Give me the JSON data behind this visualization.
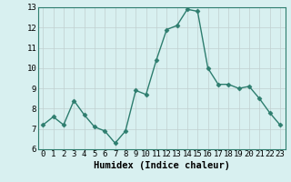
{
  "x": [
    0,
    1,
    2,
    3,
    4,
    5,
    6,
    7,
    8,
    9,
    10,
    11,
    12,
    13,
    14,
    15,
    16,
    17,
    18,
    19,
    20,
    21,
    22,
    23
  ],
  "y": [
    7.2,
    7.6,
    7.2,
    8.4,
    7.7,
    7.1,
    6.9,
    6.3,
    6.9,
    8.9,
    8.7,
    10.4,
    11.9,
    12.1,
    12.9,
    12.8,
    10.0,
    9.2,
    9.2,
    9.0,
    9.1,
    8.5,
    7.8,
    7.2
  ],
  "line_color": "#2d7d6e",
  "marker": "D",
  "marker_size": 2.5,
  "bg_color": "#d8f0f0",
  "grid_color": "#c0d0d0",
  "xlabel": "Humidex (Indice chaleur)",
  "ylim": [
    6,
    13
  ],
  "xlim": [
    -0.5,
    23.5
  ],
  "yticks": [
    6,
    7,
    8,
    9,
    10,
    11,
    12,
    13
  ],
  "xticks": [
    0,
    1,
    2,
    3,
    4,
    5,
    6,
    7,
    8,
    9,
    10,
    11,
    12,
    13,
    14,
    15,
    16,
    17,
    18,
    19,
    20,
    21,
    22,
    23
  ],
  "axis_fontsize": 6.5,
  "label_fontsize": 7.5,
  "line_width": 1.0
}
